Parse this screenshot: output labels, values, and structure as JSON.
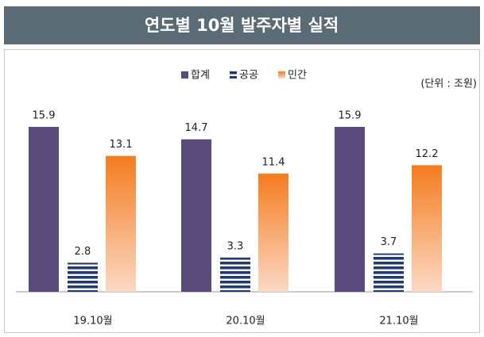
{
  "chart_data": {
    "type": "bar",
    "title": "연도별 10월 발주자별 실적",
    "unit_note": "(단위 : 조원)",
    "categories": [
      "19.10월",
      "20.10월",
      "21.10월"
    ],
    "series": [
      {
        "name": "합계",
        "color": "#5b4a7c",
        "fill_style": "solid",
        "values": [
          15.9,
          14.7,
          15.9
        ]
      },
      {
        "name": "공공",
        "color": "#1f3a6e",
        "fill_style": "stripes",
        "values": [
          2.8,
          3.3,
          3.7
        ]
      },
      {
        "name": "민간",
        "color": "#f57c1f",
        "fill_style": "gradient",
        "values": [
          13.1,
          11.4,
          12.2
        ]
      }
    ],
    "legend": "top"
  }
}
